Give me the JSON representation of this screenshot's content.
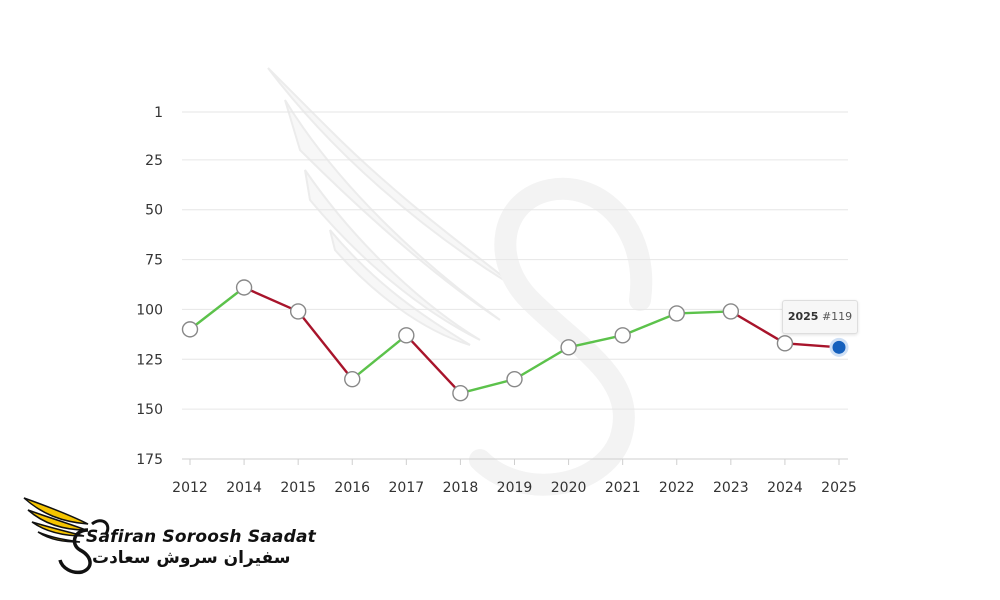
{
  "chart_data": {
    "type": "line",
    "title": "",
    "xlabel": "",
    "ylabel": "",
    "categories": [
      "2012",
      "2014",
      "2015",
      "2016",
      "2017",
      "2018",
      "2019",
      "2020",
      "2021",
      "2022",
      "2023",
      "2024",
      "2025"
    ],
    "series": [
      {
        "values": [
          110,
          89,
          101,
          135,
          113,
          142,
          135,
          119,
          113,
          102,
          101,
          117,
          119
        ]
      }
    ],
    "y_ticks": [
      1,
      25,
      50,
      75,
      100,
      125,
      150,
      175
    ],
    "y_tick_labels": [
      "1",
      "25",
      "50",
      "75",
      "100",
      "125",
      "150",
      "175"
    ],
    "ylim": [
      1,
      175
    ],
    "y_inverted": true,
    "grid": true,
    "colors": {
      "up": "#5cc24b",
      "down": "#a8142b",
      "active_point": "#1560bd"
    }
  },
  "tooltip": {
    "year": "2025",
    "rank": "#119"
  },
  "logo": {
    "name_en": "Safiran Soroosh Saadat",
    "name_fa": "سفیران سروش سعادت",
    "icon": "winged-s-logo-icon",
    "wing_color": "#f5c400"
  },
  "watermark": {
    "icon": "winged-s-watermark-icon"
  }
}
